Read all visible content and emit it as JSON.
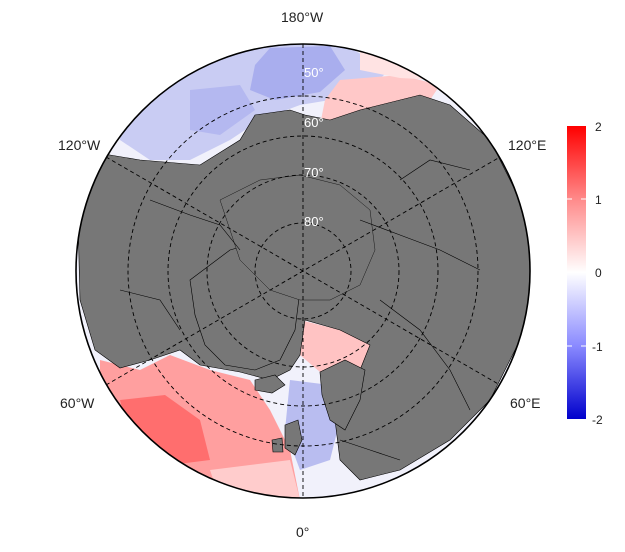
{
  "map": {
    "projection": "north-polar-stereographic",
    "land_color": "#777777",
    "grid_style": "dashed",
    "longitude_labels": [
      "180°W",
      "120°W",
      "120°E",
      "60°W",
      "60°E",
      "0°"
    ],
    "latitude_labels": [
      "50°",
      "60°",
      "70°",
      "80°"
    ],
    "latitudes": [
      50,
      60,
      70,
      80
    ],
    "longitudes": [
      0,
      60,
      120,
      180,
      -120,
      -60
    ]
  },
  "colorbar": {
    "min": -2,
    "max": 2,
    "ticks": [
      "2",
      "1",
      "0",
      "-1",
      "-2"
    ],
    "colors": {
      "low": "#0000cc",
      "mid": "#ffffff",
      "high": "#ff0000"
    }
  }
}
